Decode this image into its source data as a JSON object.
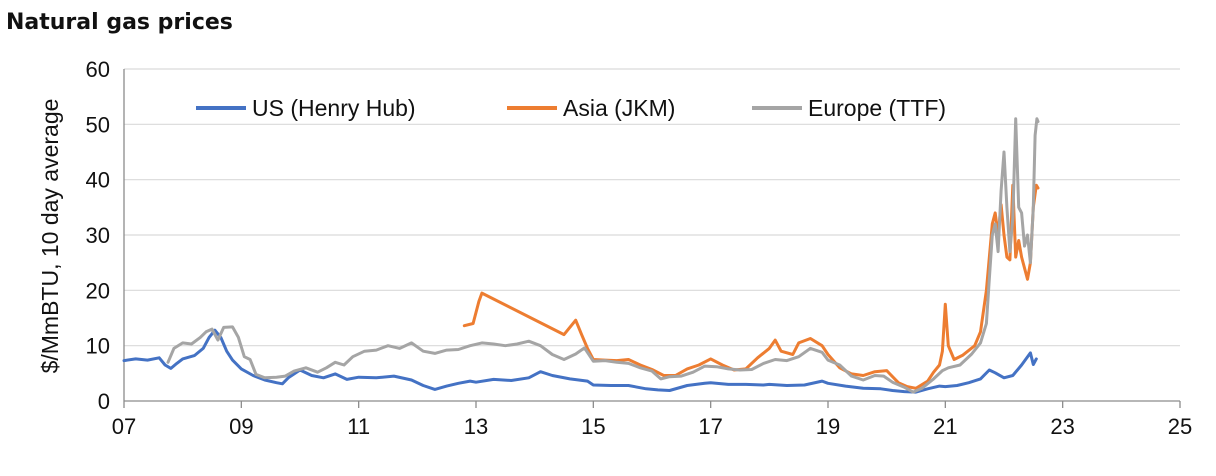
{
  "chart_data": {
    "type": "line",
    "title": "Natural gas prices",
    "ylabel": "$/MmBTU, 10 day average",
    "xlabel": "",
    "xlim": [
      2007,
      2025
    ],
    "ylim": [
      0,
      60
    ],
    "x_ticks": [
      2007,
      2009,
      2011,
      2013,
      2015,
      2017,
      2019,
      2021,
      2023,
      2025
    ],
    "x_tick_labels": [
      "07",
      "09",
      "11",
      "13",
      "15",
      "17",
      "19",
      "21",
      "23",
      "25"
    ],
    "y_ticks": [
      0,
      10,
      20,
      30,
      40,
      50,
      60
    ],
    "y_tick_labels": [
      "0",
      "10",
      "20",
      "30",
      "40",
      "50",
      "60"
    ],
    "grid": "horizontal",
    "legend_position": "top",
    "series": [
      {
        "name": "US (Henry Hub)",
        "color": "#4472C4",
        "points": [
          [
            2007.0,
            7.3
          ],
          [
            2007.2,
            7.6
          ],
          [
            2007.4,
            7.4
          ],
          [
            2007.6,
            7.8
          ],
          [
            2007.7,
            6.5
          ],
          [
            2007.8,
            5.9
          ],
          [
            2007.9,
            6.8
          ],
          [
            2008.0,
            7.6
          ],
          [
            2008.2,
            8.2
          ],
          [
            2008.35,
            9.5
          ],
          [
            2008.45,
            11.5
          ],
          [
            2008.55,
            12.8
          ],
          [
            2008.65,
            11.5
          ],
          [
            2008.75,
            9.0
          ],
          [
            2008.85,
            7.4
          ],
          [
            2009.0,
            5.8
          ],
          [
            2009.2,
            4.6
          ],
          [
            2009.4,
            3.8
          ],
          [
            2009.6,
            3.3
          ],
          [
            2009.7,
            3.1
          ],
          [
            2009.8,
            4.2
          ],
          [
            2010.0,
            5.6
          ],
          [
            2010.2,
            4.6
          ],
          [
            2010.4,
            4.2
          ],
          [
            2010.6,
            4.9
          ],
          [
            2010.8,
            3.9
          ],
          [
            2011.0,
            4.3
          ],
          [
            2011.3,
            4.2
          ],
          [
            2011.6,
            4.5
          ],
          [
            2011.9,
            3.8
          ],
          [
            2012.1,
            2.8
          ],
          [
            2012.3,
            2.1
          ],
          [
            2012.5,
            2.7
          ],
          [
            2012.7,
            3.2
          ],
          [
            2012.9,
            3.6
          ],
          [
            2013.0,
            3.4
          ],
          [
            2013.3,
            3.9
          ],
          [
            2013.6,
            3.7
          ],
          [
            2013.9,
            4.2
          ],
          [
            2014.1,
            5.3
          ],
          [
            2014.3,
            4.6
          ],
          [
            2014.6,
            4.0
          ],
          [
            2014.9,
            3.6
          ],
          [
            2015.0,
            2.9
          ],
          [
            2015.3,
            2.8
          ],
          [
            2015.6,
            2.8
          ],
          [
            2015.9,
            2.2
          ],
          [
            2016.1,
            2.0
          ],
          [
            2016.3,
            1.9
          ],
          [
            2016.6,
            2.8
          ],
          [
            2016.9,
            3.2
          ],
          [
            2017.0,
            3.3
          ],
          [
            2017.3,
            3.0
          ],
          [
            2017.6,
            3.0
          ],
          [
            2017.9,
            2.9
          ],
          [
            2018.0,
            3.0
          ],
          [
            2018.3,
            2.8
          ],
          [
            2018.6,
            2.9
          ],
          [
            2018.9,
            3.6
          ],
          [
            2019.0,
            3.2
          ],
          [
            2019.3,
            2.7
          ],
          [
            2019.6,
            2.3
          ],
          [
            2019.9,
            2.2
          ],
          [
            2020.1,
            1.9
          ],
          [
            2020.3,
            1.7
          ],
          [
            2020.5,
            1.6
          ],
          [
            2020.7,
            2.2
          ],
          [
            2020.9,
            2.7
          ],
          [
            2021.0,
            2.6
          ],
          [
            2021.2,
            2.8
          ],
          [
            2021.4,
            3.3
          ],
          [
            2021.6,
            4.0
          ],
          [
            2021.75,
            5.6
          ],
          [
            2021.85,
            5.1
          ],
          [
            2022.0,
            4.2
          ],
          [
            2022.15,
            4.6
          ],
          [
            2022.3,
            6.5
          ],
          [
            2022.45,
            8.7
          ],
          [
            2022.5,
            6.6
          ],
          [
            2022.55,
            7.6
          ]
        ]
      },
      {
        "name": "Asia (JKM)",
        "color": "#ED7D31",
        "points": [
          [
            2012.8,
            13.6
          ],
          [
            2012.95,
            14.0
          ],
          [
            2013.05,
            18.0
          ],
          [
            2013.1,
            19.5
          ],
          [
            2014.5,
            12.0
          ],
          [
            2014.7,
            14.6
          ],
          [
            2014.8,
            12.0
          ],
          [
            2014.9,
            9.5
          ],
          [
            2015.0,
            7.5
          ],
          [
            2015.2,
            7.4
          ],
          [
            2015.4,
            7.3
          ],
          [
            2015.6,
            7.5
          ],
          [
            2015.8,
            6.5
          ],
          [
            2016.0,
            5.7
          ],
          [
            2016.2,
            4.6
          ],
          [
            2016.4,
            4.6
          ],
          [
            2016.6,
            5.8
          ],
          [
            2016.8,
            6.5
          ],
          [
            2017.0,
            7.6
          ],
          [
            2017.2,
            6.5
          ],
          [
            2017.4,
            5.6
          ],
          [
            2017.6,
            5.8
          ],
          [
            2017.8,
            7.8
          ],
          [
            2018.0,
            9.5
          ],
          [
            2018.1,
            11.0
          ],
          [
            2018.2,
            9.0
          ],
          [
            2018.4,
            8.4
          ],
          [
            2018.5,
            10.5
          ],
          [
            2018.7,
            11.3
          ],
          [
            2018.9,
            10.0
          ],
          [
            2019.0,
            8.4
          ],
          [
            2019.2,
            6.0
          ],
          [
            2019.4,
            4.9
          ],
          [
            2019.6,
            4.6
          ],
          [
            2019.8,
            5.3
          ],
          [
            2020.0,
            5.5
          ],
          [
            2020.2,
            3.3
          ],
          [
            2020.35,
            2.6
          ],
          [
            2020.5,
            2.3
          ],
          [
            2020.7,
            3.6
          ],
          [
            2020.8,
            5.2
          ],
          [
            2020.9,
            6.5
          ],
          [
            2020.95,
            9.0
          ],
          [
            2021.0,
            17.5
          ],
          [
            2021.05,
            10.0
          ],
          [
            2021.15,
            7.5
          ],
          [
            2021.3,
            8.3
          ],
          [
            2021.5,
            10.0
          ],
          [
            2021.6,
            12.5
          ],
          [
            2021.7,
            20.0
          ],
          [
            2021.8,
            32.0
          ],
          [
            2021.85,
            34.0
          ],
          [
            2021.9,
            30.0
          ],
          [
            2021.95,
            35.5
          ],
          [
            2022.0,
            30.0
          ],
          [
            2022.05,
            26.0
          ],
          [
            2022.1,
            25.5
          ],
          [
            2022.15,
            39.0
          ],
          [
            2022.2,
            26.0
          ],
          [
            2022.25,
            29.0
          ],
          [
            2022.3,
            26.0
          ],
          [
            2022.4,
            22.0
          ],
          [
            2022.45,
            25.0
          ],
          [
            2022.5,
            35.0
          ],
          [
            2022.55,
            39.0
          ],
          [
            2022.58,
            38.5
          ]
        ]
      },
      {
        "name": "Europe (TTF)",
        "color": "#A5A5A5",
        "points": [
          [
            2007.75,
            7.0
          ],
          [
            2007.85,
            9.5
          ],
          [
            2008.0,
            10.5
          ],
          [
            2008.15,
            10.3
          ],
          [
            2008.3,
            11.5
          ],
          [
            2008.4,
            12.5
          ],
          [
            2008.5,
            13.0
          ],
          [
            2008.6,
            11.0
          ],
          [
            2008.7,
            13.3
          ],
          [
            2008.85,
            13.4
          ],
          [
            2008.95,
            11.5
          ],
          [
            2009.05,
            8.0
          ],
          [
            2009.15,
            7.5
          ],
          [
            2009.25,
            4.8
          ],
          [
            2009.4,
            4.2
          ],
          [
            2009.6,
            4.3
          ],
          [
            2009.75,
            4.5
          ],
          [
            2009.9,
            5.4
          ],
          [
            2010.1,
            6.0
          ],
          [
            2010.3,
            5.2
          ],
          [
            2010.45,
            6.0
          ],
          [
            2010.6,
            7.0
          ],
          [
            2010.75,
            6.5
          ],
          [
            2010.9,
            8.0
          ],
          [
            2011.1,
            9.0
          ],
          [
            2011.3,
            9.2
          ],
          [
            2011.5,
            10.0
          ],
          [
            2011.7,
            9.5
          ],
          [
            2011.9,
            10.5
          ],
          [
            2012.1,
            9.0
          ],
          [
            2012.3,
            8.6
          ],
          [
            2012.5,
            9.2
          ],
          [
            2012.7,
            9.3
          ],
          [
            2012.9,
            10.0
          ],
          [
            2013.1,
            10.5
          ],
          [
            2013.3,
            10.3
          ],
          [
            2013.5,
            10.0
          ],
          [
            2013.7,
            10.3
          ],
          [
            2013.9,
            10.8
          ],
          [
            2014.1,
            10.0
          ],
          [
            2014.3,
            8.4
          ],
          [
            2014.5,
            7.5
          ],
          [
            2014.7,
            8.5
          ],
          [
            2014.85,
            9.6
          ],
          [
            2015.0,
            7.2
          ],
          [
            2015.2,
            7.3
          ],
          [
            2015.4,
            7.0
          ],
          [
            2015.6,
            6.8
          ],
          [
            2015.8,
            6.0
          ],
          [
            2016.0,
            5.4
          ],
          [
            2016.15,
            4.0
          ],
          [
            2016.3,
            4.4
          ],
          [
            2016.5,
            4.5
          ],
          [
            2016.7,
            5.2
          ],
          [
            2016.9,
            6.3
          ],
          [
            2017.1,
            6.2
          ],
          [
            2017.3,
            5.8
          ],
          [
            2017.5,
            5.6
          ],
          [
            2017.7,
            5.7
          ],
          [
            2017.9,
            6.8
          ],
          [
            2018.1,
            7.5
          ],
          [
            2018.3,
            7.3
          ],
          [
            2018.5,
            8.0
          ],
          [
            2018.7,
            9.5
          ],
          [
            2018.9,
            8.8
          ],
          [
            2019.0,
            7.4
          ],
          [
            2019.2,
            6.5
          ],
          [
            2019.4,
            4.5
          ],
          [
            2019.6,
            3.8
          ],
          [
            2019.8,
            4.6
          ],
          [
            2019.95,
            4.5
          ],
          [
            2020.1,
            3.4
          ],
          [
            2020.3,
            2.5
          ],
          [
            2020.45,
            1.6
          ],
          [
            2020.6,
            2.3
          ],
          [
            2020.8,
            4.0
          ],
          [
            2020.95,
            5.5
          ],
          [
            2021.05,
            6.0
          ],
          [
            2021.25,
            6.5
          ],
          [
            2021.45,
            8.5
          ],
          [
            2021.6,
            10.5
          ],
          [
            2021.7,
            14.0
          ],
          [
            2021.75,
            22.0
          ],
          [
            2021.8,
            30.0
          ],
          [
            2021.85,
            32.0
          ],
          [
            2021.9,
            27.0
          ],
          [
            2021.95,
            38.0
          ],
          [
            2022.0,
            45.0
          ],
          [
            2022.05,
            35.0
          ],
          [
            2022.1,
            27.0
          ],
          [
            2022.15,
            33.0
          ],
          [
            2022.2,
            51.0
          ],
          [
            2022.25,
            35.0
          ],
          [
            2022.3,
            34.0
          ],
          [
            2022.35,
            28.0
          ],
          [
            2022.4,
            30.0
          ],
          [
            2022.45,
            25.0
          ],
          [
            2022.5,
            35.0
          ],
          [
            2022.53,
            48.0
          ],
          [
            2022.56,
            51.0
          ],
          [
            2022.58,
            50.5
          ]
        ]
      }
    ]
  }
}
